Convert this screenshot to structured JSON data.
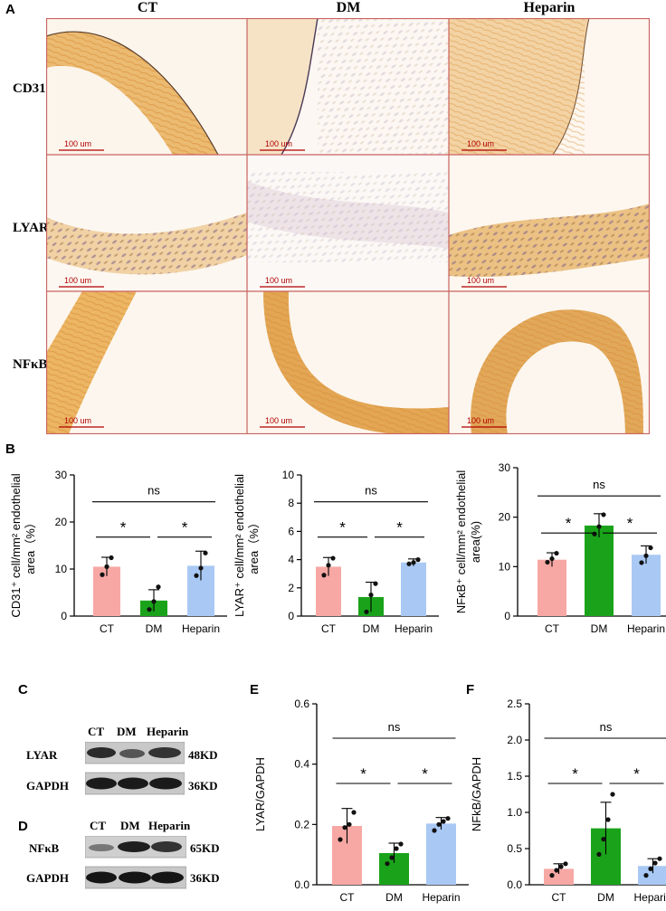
{
  "panels": {
    "A": "A",
    "B": "B",
    "C": "C",
    "D": "D",
    "E": "E",
    "F": "F"
  },
  "micrographs": {
    "columns": [
      "CT",
      "DM",
      "Heparin"
    ],
    "rows": [
      "CD31",
      "LYAR",
      "NFκB"
    ],
    "scale_bar": "100 um",
    "colors": {
      "border": "#c9635f",
      "tissue": "#e9b463",
      "background": "#fbf4ec",
      "nuclei": "#8a6aa0"
    }
  },
  "blots": {
    "C": {
      "lanes": [
        "CT",
        "DM",
        "Heparin"
      ],
      "rows": [
        {
          "name": "LYAR",
          "size": "48KD"
        },
        {
          "name": "GAPDH",
          "size": "36KD"
        }
      ]
    },
    "D": {
      "lanes": [
        "CT",
        "DM",
        "Heparin"
      ],
      "rows": [
        {
          "name": "NFκB",
          "size": "65KD"
        },
        {
          "name": "GAPDH",
          "size": "36KD"
        }
      ]
    }
  },
  "chart_data": [
    {
      "id": "B1",
      "type": "bar",
      "categories": [
        "CT",
        "DM",
        "Heparin"
      ],
      "values": [
        10.5,
        3.3,
        10.7
      ],
      "errors": [
        2.0,
        2.3,
        3.1
      ],
      "points": [
        [
          8.8,
          10.5,
          12.4
        ],
        [
          1.4,
          3.1,
          6.2
        ],
        [
          8.6,
          10.2,
          13.4
        ]
      ],
      "ylim": [
        0,
        30
      ],
      "yticks": [
        "0",
        "10",
        "20",
        "30"
      ],
      "ylabel_lines": [
        "CD31⁺ cell/mm² endothelial",
        "area（%）"
      ],
      "comparisons": [
        {
          "a": 0,
          "b": 1,
          "label": "*"
        },
        {
          "a": 1,
          "b": 2,
          "label": "*"
        },
        {
          "a": 0,
          "b": 2,
          "label": "ns"
        }
      ],
      "colors": [
        "#f7a8a4",
        "#1aa31a",
        "#a9c9f4"
      ]
    },
    {
      "id": "B2",
      "type": "bar",
      "categories": [
        "CT",
        "DM",
        "Heparin"
      ],
      "values": [
        3.5,
        1.35,
        3.8
      ],
      "errors": [
        0.65,
        1.05,
        0.25
      ],
      "points": [
        [
          2.9,
          3.6,
          4.1
        ],
        [
          0.3,
          1.5,
          2.3
        ],
        [
          3.7,
          3.8,
          4.0
        ]
      ],
      "ylim": [
        0,
        10
      ],
      "yticks": [
        "0",
        "2",
        "4",
        "6",
        "8",
        "10"
      ],
      "ylabel_lines": [
        "LYAR⁺ cell/mm² endothelial",
        "area（%）"
      ],
      "comparisons": [
        {
          "a": 0,
          "b": 1,
          "label": "*"
        },
        {
          "a": 1,
          "b": 2,
          "label": "*"
        },
        {
          "a": 0,
          "b": 2,
          "label": "ns"
        }
      ],
      "colors": [
        "#f7a8a4",
        "#1aa31a",
        "#a9c9f4"
      ]
    },
    {
      "id": "B3",
      "type": "bar",
      "categories": [
        "CT",
        "DM",
        "Heparin"
      ],
      "values": [
        11.4,
        18.3,
        12.4
      ],
      "errors": [
        1.4,
        2.4,
        1.8
      ],
      "points": [
        [
          10.9,
          11.6,
          12.7
        ],
        [
          16.6,
          18.1,
          20.5
        ],
        [
          10.8,
          12.2,
          13.8
        ]
      ],
      "ylim": [
        0,
        30
      ],
      "yticks": [
        "0",
        "10",
        "20",
        "30"
      ],
      "ylabel_lines": [
        "NFκB⁺ cell/mm² endothelial",
        "area(%)"
      ],
      "comparisons": [
        {
          "a": 0,
          "b": 1,
          "label": "*"
        },
        {
          "a": 1,
          "b": 2,
          "label": "*"
        },
        {
          "a": 0,
          "b": 2,
          "label": "ns"
        }
      ],
      "colors": [
        "#f7a8a4",
        "#1aa31a",
        "#a9c9f4"
      ]
    },
    {
      "id": "E",
      "type": "bar",
      "categories": [
        "CT",
        "DM",
        "Heparin"
      ],
      "values": [
        0.195,
        0.105,
        0.203
      ],
      "errors": [
        0.058,
        0.033,
        0.02
      ],
      "points": [
        [
          0.15,
          0.19,
          0.2,
          0.24
        ],
        [
          0.07,
          0.09,
          0.12,
          0.135
        ],
        [
          0.18,
          0.2,
          0.21,
          0.22
        ]
      ],
      "ylim": [
        0,
        0.6
      ],
      "yticks": [
        "0.0",
        "0.2",
        "0.4",
        "0.6"
      ],
      "ylabel_lines": [
        "LYAR/GAPDH"
      ],
      "comparisons": [
        {
          "a": 0,
          "b": 1,
          "label": "*"
        },
        {
          "a": 1,
          "b": 2,
          "label": "*"
        },
        {
          "a": 0,
          "b": 2,
          "label": "ns"
        }
      ],
      "colors": [
        "#f7a8a4",
        "#1aa31a",
        "#a9c9f4"
      ]
    },
    {
      "id": "F",
      "type": "bar",
      "categories": [
        "CT",
        "DM",
        "Heparin"
      ],
      "values": [
        0.22,
        0.78,
        0.26
      ],
      "errors": [
        0.07,
        0.36,
        0.1
      ],
      "points": [
        [
          0.13,
          0.2,
          0.25,
          0.29
        ],
        [
          0.42,
          0.63,
          0.9,
          1.25
        ],
        [
          0.13,
          0.22,
          0.3,
          0.36
        ]
      ],
      "ylim": [
        0,
        2.5
      ],
      "yticks": [
        "0.0",
        "0.5",
        "1.0",
        "1.5",
        "2.0",
        "2.5"
      ],
      "ylabel_lines": [
        "NFkB/GAPDH"
      ],
      "comparisons": [
        {
          "a": 0,
          "b": 1,
          "label": "*"
        },
        {
          "a": 1,
          "b": 2,
          "label": "*"
        },
        {
          "a": 0,
          "b": 2,
          "label": "ns"
        }
      ],
      "colors": [
        "#f7a8a4",
        "#1aa31a",
        "#a9c9f4"
      ]
    }
  ]
}
